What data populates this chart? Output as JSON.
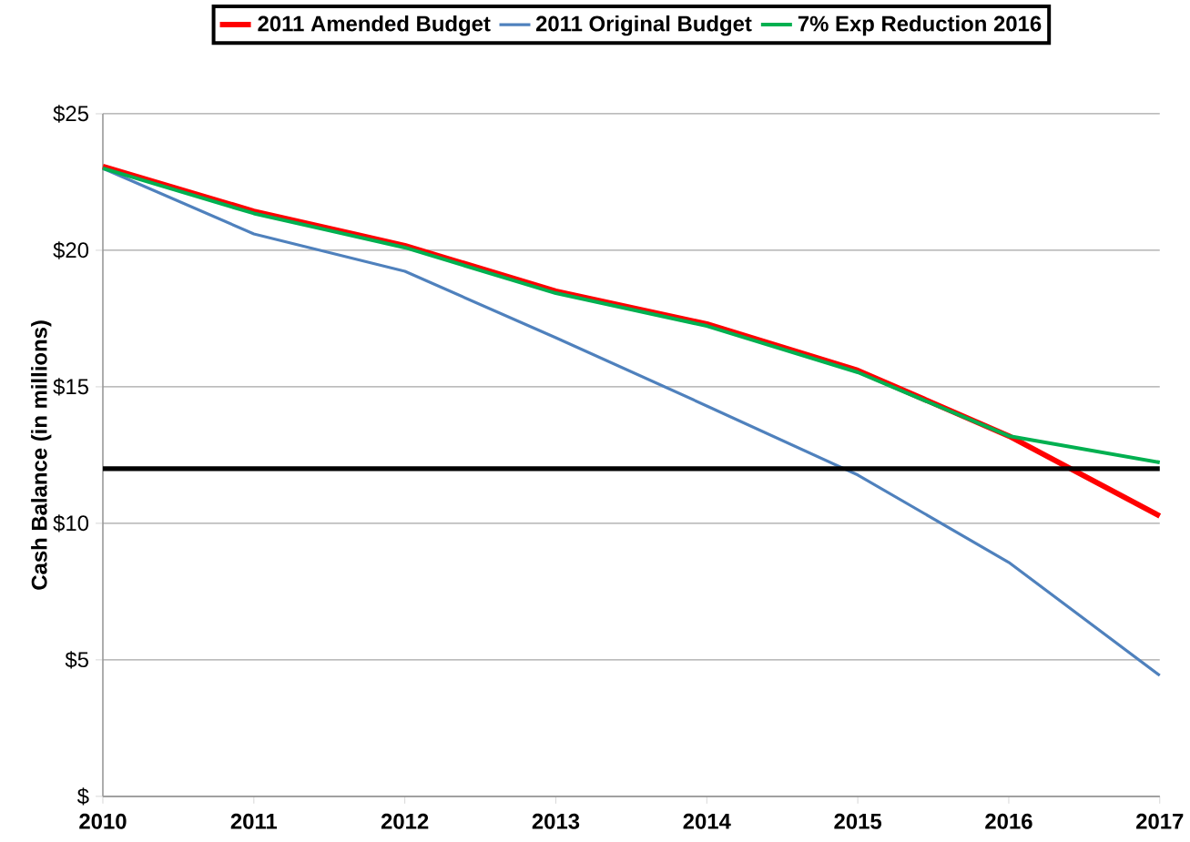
{
  "chart_data": {
    "type": "line",
    "x": [
      2010,
      2011,
      2012,
      2013,
      2014,
      2015,
      2016,
      2017
    ],
    "series": [
      {
        "name": "2011 Amended Budget",
        "color": "#ff0000",
        "values": [
          23.07,
          21.43,
          20.17,
          18.5,
          17.3,
          15.6,
          13.2,
          10.27
        ]
      },
      {
        "name": "2011 Original Budget",
        "color": "#4f81bd",
        "values": [
          23.0,
          20.6,
          19.23,
          16.8,
          14.3,
          11.77,
          8.57,
          4.43
        ]
      },
      {
        "name": "7% Exp Reduction 2016",
        "color": "#00b050",
        "values": [
          23.0,
          21.35,
          20.1,
          18.43,
          17.23,
          15.53,
          13.2,
          12.23
        ]
      }
    ],
    "ylabel": "Cash Balance (in millions)",
    "xlim": [
      2010,
      2017
    ],
    "xticks": [
      2010,
      2011,
      2012,
      2013,
      2014,
      2015,
      2016,
      2017
    ],
    "ylim": [
      0,
      25
    ],
    "yticks": [
      {
        "value": 0,
        "label": "$"
      },
      {
        "value": 5,
        "label": "$5"
      },
      {
        "value": 10,
        "label": "$10"
      },
      {
        "value": 15,
        "label": "$15"
      },
      {
        "value": 20,
        "label": "$20"
      },
      {
        "value": 25,
        "label": "$25"
      }
    ],
    "ref_lines": [
      {
        "axis": "y",
        "value": 12,
        "color": "#000000"
      }
    ],
    "grid": "y",
    "legend": "top",
    "marker": "none",
    "line_style": "solid"
  }
}
